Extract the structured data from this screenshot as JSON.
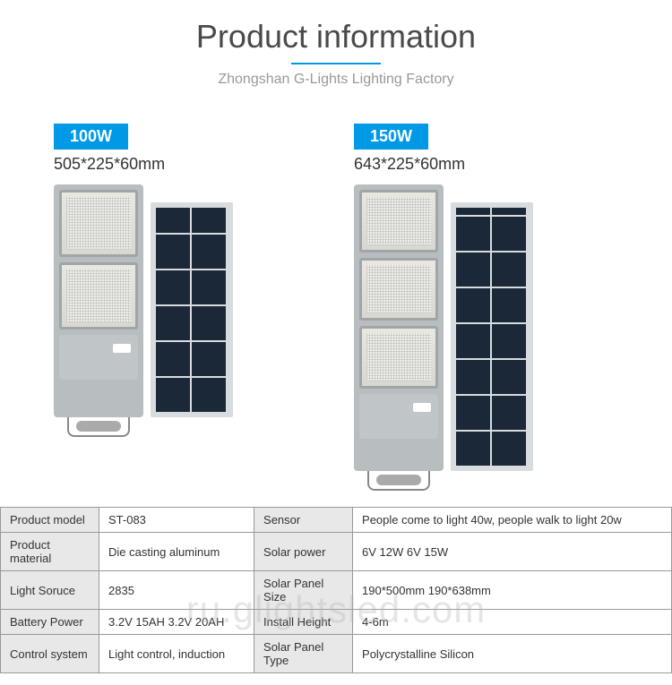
{
  "header": {
    "title": "Product information",
    "subtitle": "Zhongshan G-Lights Lighting Factory",
    "title_color": "#4a4a4a",
    "subtitle_color": "#999999",
    "accent_color": "#0099e5"
  },
  "products": [
    {
      "wattage": "100W",
      "dimensions": "505*225*60mm",
      "panels": 2
    },
    {
      "wattage": "150W",
      "dimensions": "643*225*60mm",
      "panels": 3
    }
  ],
  "specs": {
    "rows": [
      {
        "l1": "Product model",
        "v1": "ST-083",
        "l2": "Sensor",
        "v2": "People come to light 40w, people walk to light 20w"
      },
      {
        "l1": "Product material",
        "v1": "Die casting aluminum",
        "l2": "Solar power",
        "v2": "6V 12W    6V 15W"
      },
      {
        "l1": "Light Soruce",
        "v1": "2835",
        "l2": "Solar Panel Size",
        "v2": "190*500mm    190*638mm"
      },
      {
        "l1": "Battery Power",
        "v1": "3.2V 15AH   3.2V 20AH",
        "l2": "Install Height",
        "v2": "4-6m"
      },
      {
        "l1": "Control system",
        "v1": "Light control, induction",
        "l2": "Solar Panel Type",
        "v2": "Polycrystalline Silicon"
      }
    ]
  },
  "watermark": "ru.glightsled.com"
}
